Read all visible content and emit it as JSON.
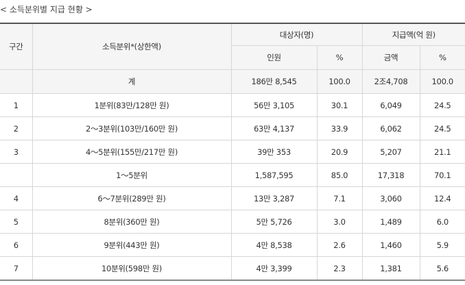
{
  "caption": "< 소득분위별 지급 현황 >",
  "headers": {
    "section": "구간",
    "income_band": "소득분위*(상한액)",
    "recipients": "대상자(명)",
    "amount": "지급액(억 원)",
    "people": "인원",
    "pct_recipients": "%",
    "money": "금액",
    "pct_amount": "%"
  },
  "total": {
    "label": "계",
    "people": "186만 8,545",
    "people_pct": "100.0",
    "amount": "2조4,708",
    "amount_pct": "100.0"
  },
  "rows": [
    {
      "section": "1",
      "band": "1분위(83만/128만 원)",
      "people": "56만 3,105",
      "people_pct": "30.1",
      "amount": "6,049",
      "amount_pct": "24.5"
    },
    {
      "section": "2",
      "band": "2～3분위(103만/160만 원)",
      "people": "63만 4,137",
      "people_pct": "33.9",
      "amount": "6,062",
      "amount_pct": "24.5"
    },
    {
      "section": "3",
      "band": "4～5분위(155만/217만 원)",
      "people": "39만 353",
      "people_pct": "20.9",
      "amount": "5,207",
      "amount_pct": "21.1"
    },
    {
      "section": "",
      "band": "1～5분위",
      "people": "1,587,595",
      "people_pct": "85.0",
      "amount": "17,318",
      "amount_pct": "70.1"
    },
    {
      "section": "4",
      "band": "6～7분위(289만 원)",
      "people": "13만 3,287",
      "people_pct": "7.1",
      "amount": "3,060",
      "amount_pct": "12.4"
    },
    {
      "section": "5",
      "band": "8분위(360만 원)",
      "people": "5만 5,726",
      "people_pct": "3.0",
      "amount": "1,489",
      "amount_pct": "6.0"
    },
    {
      "section": "6",
      "band": "9분위(443만 원)",
      "people": "4만 8,538",
      "people_pct": "2.6",
      "amount": "1,460",
      "amount_pct": "5.9"
    },
    {
      "section": "7",
      "band": "10분위(598만 원)",
      "people": "4만 3,399",
      "people_pct": "2.3",
      "amount": "1,381",
      "amount_pct": "5.6"
    }
  ]
}
